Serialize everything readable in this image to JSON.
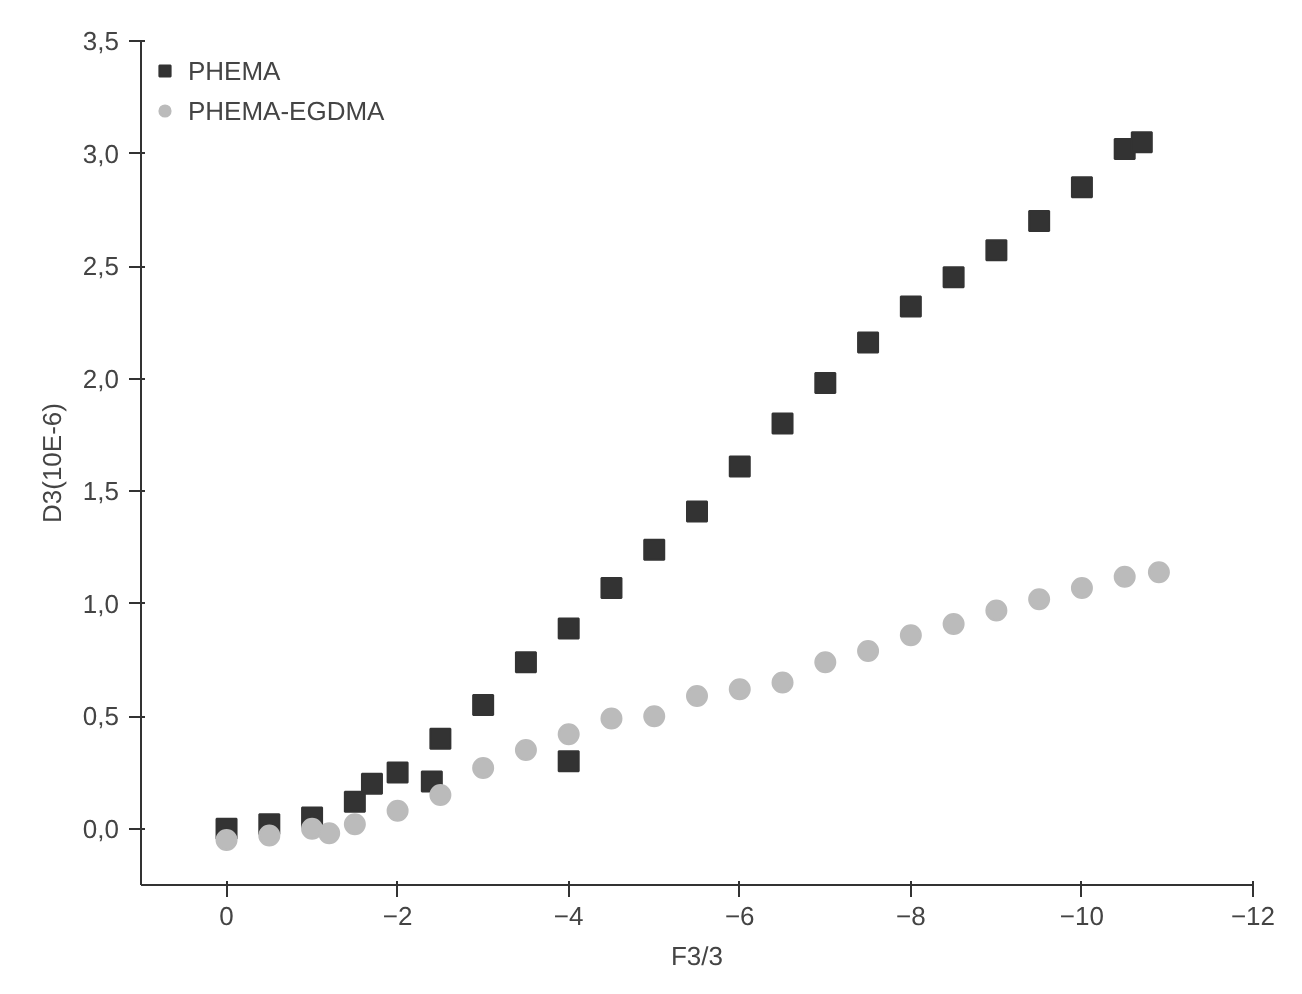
{
  "chart_data": {
    "type": "scatter",
    "xlabel": "F3/3",
    "ylabel": "D3(10E-6)",
    "xlim": [
      1,
      -12
    ],
    "xticks": [
      0,
      -2,
      -4,
      -6,
      -8,
      -10,
      -12
    ],
    "ylim": [
      -0.25,
      3.5
    ],
    "yticks": [
      {
        "value": 0,
        "label": "0,0"
      },
      {
        "value": 0.5,
        "label": "0,5"
      },
      {
        "value": 1,
        "label": "1,0"
      },
      {
        "value": 1.5,
        "label": "1,5"
      },
      {
        "value": 2,
        "label": "2,0"
      },
      {
        "value": 2.5,
        "label": "2,5"
      },
      {
        "value": 3,
        "label": "3,0"
      },
      {
        "value": 3.5,
        "label": "3,5"
      }
    ],
    "grid": false,
    "legend": "top left",
    "series": [
      {
        "name": "PHEMA",
        "color": "#333333",
        "marker": "square",
        "x": [
          0,
          -0.5,
          -1,
          -1.5,
          -1.7,
          -2,
          -2.4,
          -2.5,
          -3,
          -3.5,
          -4,
          -4,
          -4.5,
          -5,
          -5.5,
          -6,
          -6.5,
          -7,
          -7.5,
          -8,
          -8.5,
          -9,
          -9.5,
          -10,
          -10.5,
          -10.7
        ],
        "values": [
          0.0,
          0.02,
          0.05,
          0.12,
          0.2,
          0.25,
          0.21,
          0.4,
          0.55,
          0.74,
          0.89,
          0.3,
          1.07,
          1.24,
          1.41,
          1.61,
          1.8,
          1.98,
          2.16,
          2.32,
          2.45,
          2.57,
          2.7,
          2.85,
          3.02,
          3.05
        ]
      },
      {
        "name": "PHEMA-EGDMA",
        "color": "#bbbbbb",
        "marker": "circle",
        "x": [
          0,
          -0.5,
          -1,
          -1.2,
          -1.5,
          -2,
          -2.5,
          -3,
          -3.5,
          -4,
          -4.5,
          -5,
          -5.5,
          -6,
          -6.5,
          -7,
          -7.5,
          -8,
          -8.5,
          -9,
          -9.5,
          -10,
          -10.5,
          -10.9
        ],
        "values": [
          -0.05,
          -0.03,
          0.0,
          -0.02,
          0.02,
          0.08,
          0.15,
          0.27,
          0.35,
          0.42,
          0.49,
          0.5,
          0.59,
          0.62,
          0.65,
          0.74,
          0.79,
          0.86,
          0.91,
          0.97,
          1.02,
          1.07,
          1.12,
          1.14
        ]
      }
    ]
  }
}
